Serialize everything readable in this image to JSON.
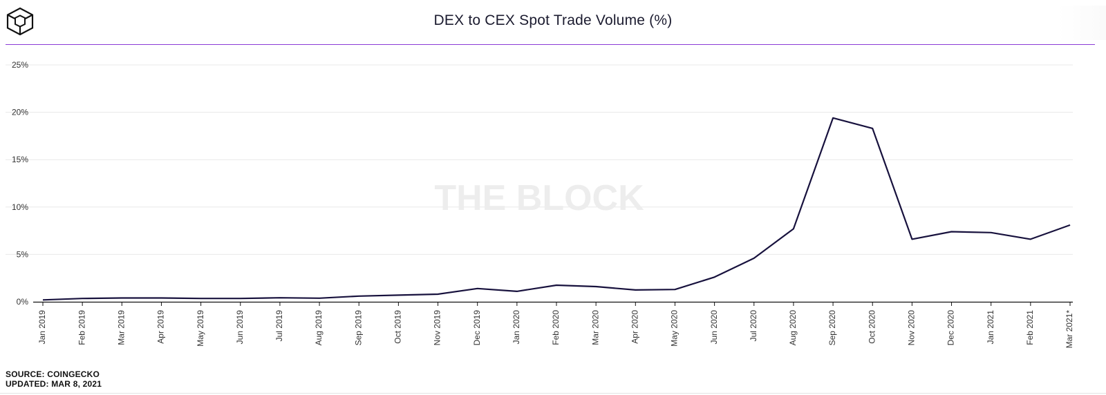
{
  "header": {
    "title": "DEX to CEX Spot Trade Volume (%)",
    "logo_icon": "the-block-cube-icon"
  },
  "watermark": "THE BLOCK",
  "footer": {
    "source": "SOURCE: COINGECKO",
    "updated": "UPDATED: MAR 8, 2021"
  },
  "colors": {
    "line": "#17113d",
    "accent_rule": "#8a3ad6",
    "grid": "#e8e8e8"
  },
  "chart_data": {
    "type": "line",
    "title": "DEX to CEX Spot Trade Volume (%)",
    "xlabel": "",
    "ylabel": "",
    "ylim": [
      0,
      25
    ],
    "yticks": [
      0,
      5,
      10,
      15,
      20,
      25
    ],
    "ytick_labels": [
      "0%",
      "5%",
      "10%",
      "15%",
      "20%",
      "25%"
    ],
    "grid": true,
    "categories": [
      "Jan 2019",
      "Feb 2019",
      "Mar 2019",
      "Apr 2019",
      "May 2019",
      "Jun 2019",
      "Jul 2019",
      "Aug 2019",
      "Sep 2019",
      "Oct 2019",
      "Nov 2019",
      "Dec 2019",
      "Jan 2020",
      "Feb 2020",
      "Mar 2020",
      "Apr 2020",
      "May 2020",
      "Jun 2020",
      "Jul 2020",
      "Aug 2020",
      "Sep 2020",
      "Oct 2020",
      "Nov 2020",
      "Dec 2020",
      "Jan 2021",
      "Feb 2021",
      "Mar 2021*"
    ],
    "series": [
      {
        "name": "DEX to CEX Spot Trade Volume (%)",
        "values": [
          0.2,
          0.35,
          0.4,
          0.4,
          0.35,
          0.35,
          0.42,
          0.38,
          0.6,
          0.7,
          0.8,
          1.4,
          1.1,
          1.75,
          1.6,
          1.25,
          1.3,
          2.6,
          4.6,
          7.7,
          19.4,
          18.3,
          6.6,
          7.4,
          7.3,
          6.6,
          8.1
        ]
      }
    ]
  }
}
